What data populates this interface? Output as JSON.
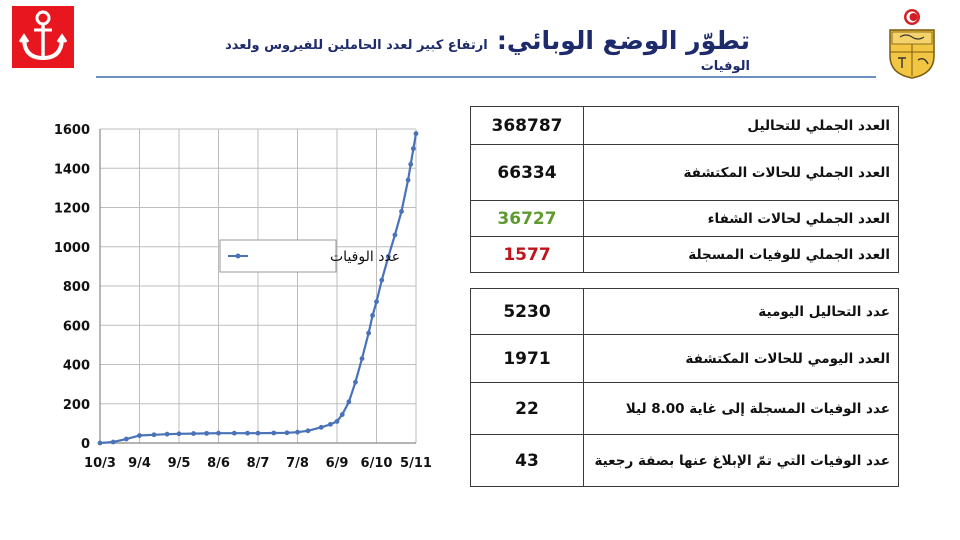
{
  "header": {
    "title": "تطوّر الوضع الوبائي:",
    "subtitle": "ارتفاع كبير لعدد الحاملين للفيروس ولعدد الوفيات"
  },
  "logos": {
    "left": "anchor-crescent-logo",
    "right": "tunisia-coat-of-arms"
  },
  "summary_table": [
    {
      "value": "368787",
      "label": "العدد الجملي للتحاليل",
      "value_color": "#111111"
    },
    {
      "value": "66334",
      "label": "العدد الجملي للحالات المكتشفة",
      "value_color": "#111111"
    },
    {
      "value": "36727",
      "label": "العدد الجملي لحالات الشفاء",
      "value_color": "#5e9a2f"
    },
    {
      "value": "1577",
      "label": "العدد الجملي للوفيات المسجلة",
      "value_color": "#c0141c"
    }
  ],
  "daily_table": [
    {
      "value": "5230",
      "label": "عدد التحاليل اليومية"
    },
    {
      "value": "1971",
      "label": "العدد اليومي للحالات المكتشفة"
    },
    {
      "value": "22",
      "label": "عدد الوفيات المسجلة إلى غاية 8.00 ليلا"
    },
    {
      "value": "43",
      "label": "عدد الوفيات التي تمّ الإبلاغ عنها بصفة رجعية"
    }
  ],
  "chart_data": {
    "type": "line",
    "title": "",
    "xlabel": "",
    "ylabel": "",
    "ylim": [
      0,
      1600
    ],
    "y_ticks": [
      0,
      200,
      400,
      600,
      800,
      1000,
      1200,
      1400,
      1600
    ],
    "x_ticks": [
      "10/3",
      "9/4",
      "9/5",
      "8/6",
      "8/7",
      "7/8",
      "6/9",
      "6/10",
      "5/11"
    ],
    "grid": true,
    "legend": "inside-upper-left",
    "series": [
      {
        "name": "عدد الوفيات",
        "color": "#4a72b8",
        "x": [
          "10/3",
          "20/3",
          "30/3",
          "9/4",
          "20/4",
          "30/4",
          "9/5",
          "20/5",
          "30/5",
          "8/6",
          "20/6",
          "30/6",
          "8/7",
          "20/7",
          "30/7",
          "7/8",
          "15/8",
          "25/8",
          "1/9",
          "6/9",
          "10/9",
          "15/9",
          "20/9",
          "25/9",
          "30/9",
          "3/10",
          "6/10",
          "10/10",
          "15/10",
          "20/10",
          "25/10",
          "30/10",
          "1/11",
          "3/11",
          "5/11"
        ],
        "values": [
          0,
          5,
          20,
          38,
          42,
          45,
          47,
          48,
          49,
          50,
          50,
          50,
          50,
          51,
          52,
          55,
          62,
          80,
          95,
          110,
          145,
          210,
          310,
          430,
          560,
          650,
          720,
          830,
          950,
          1060,
          1180,
          1340,
          1420,
          1500,
          1577
        ]
      }
    ]
  }
}
